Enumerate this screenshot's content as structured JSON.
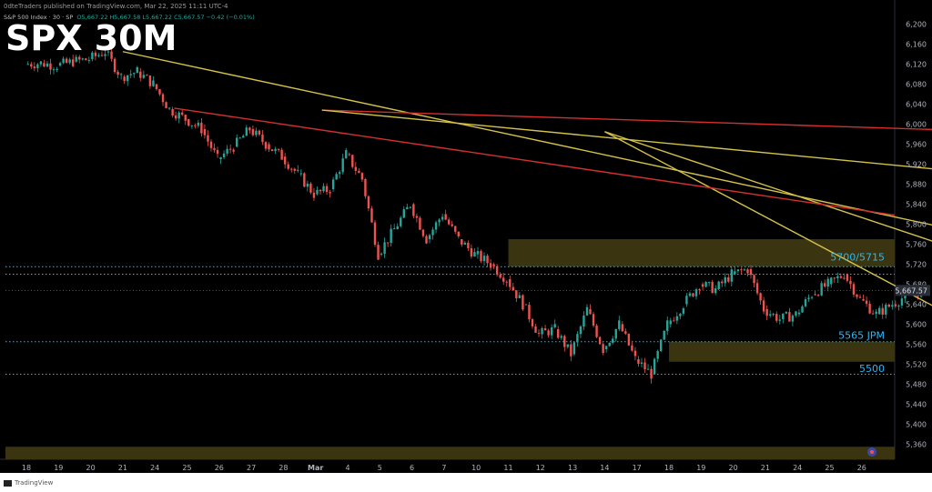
{
  "header": {
    "publisher": "0dteTraders published on TradingView.com, Mar 22, 2025 11:11 UTC-4",
    "symbol_line": "S&P 500 Index · 30 · SP",
    "ohlc": "O5,667.22 H5,667.58 L5,667.22 C5,667.57 −0.42 (−0.01%)"
  },
  "overlay_title": "SPX 30M",
  "footer": {
    "brand": "TradingView"
  },
  "colors": {
    "background": "#000000",
    "up": "#26a69a",
    "down": "#ef5350",
    "trendline": "#d4c24a",
    "resistance_line": "#d32f2f",
    "zone": "#3a3510",
    "dotted_level": "#29b6f6",
    "annotation": "#29b6f6",
    "axis_text": "#b2b5be"
  },
  "chart_data": {
    "type": "candlestick",
    "title": "SPX 30M",
    "xlabel": "",
    "ylabel": "",
    "ylim": [
      5330,
      6230
    ],
    "x_tick_labels": [
      "18",
      "19",
      "20",
      "21",
      "24",
      "25",
      "26",
      "27",
      "28",
      "Mar",
      "4",
      "5",
      "6",
      "7",
      "10",
      "11",
      "12",
      "13",
      "14",
      "17",
      "18",
      "19",
      "20",
      "21",
      "24",
      "25",
      "26"
    ],
    "y_tick_values": [
      5360,
      5400,
      5440,
      5480,
      5520,
      5560,
      5600,
      5640,
      5680,
      5720,
      5760,
      5800,
      5840,
      5880,
      5920,
      5960,
      6000,
      6040,
      6080,
      6120,
      6160,
      6200
    ],
    "last_price": "5,667.57",
    "last_price_value": 5667.57,
    "price_path": [
      [
        0,
        6120
      ],
      [
        1,
        6122
      ],
      [
        2,
        6117
      ],
      [
        3,
        6125
      ],
      [
        4,
        6130
      ],
      [
        5,
        6145
      ],
      [
        6,
        6095
      ],
      [
        7,
        6105
      ],
      [
        8,
        6080
      ],
      [
        9,
        6030
      ],
      [
        10,
        6010
      ],
      [
        11,
        5990
      ],
      [
        12,
        5930
      ],
      [
        13,
        5955
      ],
      [
        14,
        5990
      ],
      [
        15,
        5960
      ],
      [
        16,
        5935
      ],
      [
        17,
        5900
      ],
      [
        18,
        5860
      ],
      [
        19,
        5870
      ],
      [
        20,
        5940
      ],
      [
        21,
        5890
      ],
      [
        22,
        5740
      ],
      [
        23,
        5790
      ],
      [
        24,
        5840
      ],
      [
        25,
        5770
      ],
      [
        26,
        5820
      ],
      [
        27,
        5770
      ],
      [
        28,
        5740
      ],
      [
        29,
        5720
      ],
      [
        30,
        5690
      ],
      [
        31,
        5640
      ],
      [
        32,
        5580
      ],
      [
        33,
        5590
      ],
      [
        34,
        5540
      ],
      [
        35,
        5630
      ],
      [
        36,
        5550
      ],
      [
        37,
        5600
      ],
      [
        38,
        5530
      ],
      [
        39,
        5500
      ],
      [
        40,
        5600
      ],
      [
        41,
        5640
      ],
      [
        42,
        5680
      ],
      [
        43,
        5670
      ],
      [
        44,
        5700
      ],
      [
        45,
        5710
      ],
      [
        46,
        5630
      ],
      [
        47,
        5610
      ],
      [
        48,
        5620
      ],
      [
        49,
        5660
      ],
      [
        50,
        5680
      ],
      [
        51,
        5700
      ],
      [
        52,
        5650
      ],
      [
        53,
        5620
      ],
      [
        54,
        5640
      ],
      [
        55,
        5660
      ],
      [
        56,
        5667
      ]
    ],
    "trendlines": [
      {
        "from": [
          3.0,
          6145
        ],
        "to": [
          48.8,
          5515
        ]
      },
      {
        "from": [
          9.2,
          6028
        ],
        "to": [
          30.3,
          5985
        ]
      },
      {
        "from": [
          9.2,
          6028
        ],
        "to": [
          44.5,
          5810
        ]
      },
      {
        "from": [
          18.0,
          5985
        ],
        "to": [
          42.0,
          5470
        ]
      },
      {
        "from": [
          18.0,
          5985
        ],
        "to": [
          31.2,
          5535
        ]
      }
    ],
    "zones": [
      {
        "y1": 5715,
        "y2": 5770,
        "x_start": 15.0
      },
      {
        "y1": 5525,
        "y2": 5565,
        "x_start": 20.0
      },
      {
        "y1": 5330,
        "y2": 5355,
        "x_start": 0
      }
    ],
    "levels": [
      {
        "value": 5715,
        "label": "5700/5715"
      },
      {
        "value": 5700,
        "label": ""
      },
      {
        "value": 5565,
        "label": "5565 JPM"
      },
      {
        "value": 5500,
        "label": "5500"
      }
    ]
  }
}
